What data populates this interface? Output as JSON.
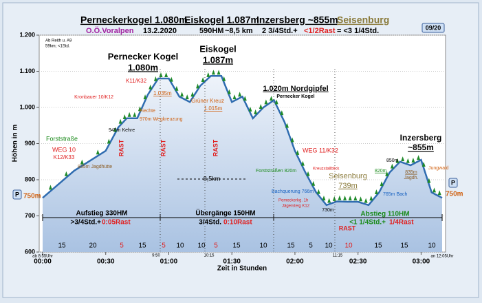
{
  "chart_data": {
    "type": "area",
    "header": {
      "peaks": [
        "Perneckerkogel 1.080m",
        "Eiskogel 1.087m",
        "Inzersberg ~855m",
        "Seisenburg"
      ],
      "region": "O.Ö.Voralpen",
      "date": "13.2.2020",
      "ascent": "590HM",
      "distance": "~8,5 km",
      "walk_time": "2 3/4Std.+",
      "rest_time": "<1/2Rast",
      "total_time": "= <3 1/4Std.",
      "badge": "09/20"
    },
    "ylabel": "Höhen in m",
    "xlabel": "Zeit in Stunden",
    "x": [
      0,
      15,
      30,
      36,
      40,
      45,
      50,
      55,
      60,
      65,
      70,
      75,
      80,
      85,
      90,
      95,
      100,
      105,
      110,
      115,
      120,
      125,
      130,
      135,
      140,
      145,
      150,
      155,
      160,
      165,
      170,
      175,
      180,
      185,
      190
    ],
    "values": [
      750,
      825,
      880,
      945,
      970,
      970,
      1035,
      1080,
      1080,
      1030,
      1015,
      1060,
      1087,
      1087,
      1015,
      1030,
      970,
      1000,
      1020,
      960,
      880,
      820,
      766,
      730,
      740,
      739,
      739,
      730,
      765,
      820,
      850,
      840,
      855,
      765,
      750
    ],
    "color": "#2f6cb0",
    "xlim": [
      0,
      190
    ],
    "ylim": [
      600,
      1200
    ],
    "xticks": [
      {
        "value": 0,
        "label": "00:00"
      },
      {
        "value": 30,
        "label": "00:30"
      },
      {
        "value": 60,
        "label": "01:00"
      },
      {
        "value": 90,
        "label": "01:30"
      },
      {
        "value": 120,
        "label": "02:00"
      },
      {
        "value": 150,
        "label": "02:30"
      },
      {
        "value": 180,
        "label": "03:00"
      }
    ],
    "yticks": [
      600,
      700,
      800,
      900,
      {
        "value": 1000,
        "label": "1.000"
      },
      {
        "value": 1100,
        "label": "1.100"
      },
      {
        "value": 1200,
        "label": "1.200"
      }
    ],
    "grid": true,
    "durations": [
      {
        "minutes": 15,
        "rest": false
      },
      {
        "minutes": 20,
        "rest": false
      },
      {
        "minutes": 5,
        "rest": true
      },
      {
        "minutes": 15,
        "rest": false
      },
      {
        "minutes": 5,
        "rest": true
      },
      {
        "minutes": 10,
        "rest": false
      },
      {
        "minutes": 10,
        "rest": false
      },
      {
        "minutes": 5,
        "rest": true
      },
      {
        "minutes": 15,
        "rest": false
      },
      {
        "minutes": 10,
        "rest": false
      },
      {
        "minutes": 15,
        "rest": false
      },
      {
        "minutes": 5,
        "rest": false
      },
      {
        "minutes": 10,
        "rest": false
      },
      {
        "minutes": 10,
        "rest": true
      },
      {
        "minutes": 15,
        "rest": false
      },
      {
        "minutes": 15,
        "rest": false
      },
      {
        "minutes": 10,
        "rest": false
      }
    ],
    "annotations": [
      "Ab Reith u. A9",
      "59km; <1Std.",
      "Pernecker Kogel",
      "1.080m",
      "Eiskogel",
      "1.087m",
      "1.020m Nordgipfel",
      "Pernecker Kogel",
      "Inzersberg",
      "~855m",
      "Seisenburg",
      "739m",
      "Forststraße",
      "WEG 10",
      "K12/K33",
      "835m Jagdhütte",
      "945m Kehre",
      "970m Wegkreuzung",
      "Fiechte",
      "Kronbauer 10/K12",
      "K11/K32",
      "1.035m",
      "Grüner Kreuz",
      "1.015m",
      "8,5km",
      "WEG 11/K32",
      "Forststraßen 820m",
      "Kreuzstallblick",
      "Bachquerung 766m",
      "Pemeckerkg. 1h",
      "Jägersteig K12",
      "730m",
      "820m",
      "765m Bach",
      "850m",
      "835m",
      "Jagdh.",
      "Jungwald",
      "750m",
      "750m",
      "Aufstieg 330HM",
      ">3/4Std.+",
      "0:05Rast",
      "Übergänge 150HM",
      "3/4Std.",
      "0:10Rast",
      "Abstieg 110HM",
      "<1 1/4Std.+",
      "1/4Rast",
      "RAST",
      "RAST",
      "RAST",
      "RAST",
      "ab 8:55Uhr",
      "9:50",
      "10:15",
      "11:15",
      "an 12:05Uhr",
      "P",
      "P"
    ]
  }
}
